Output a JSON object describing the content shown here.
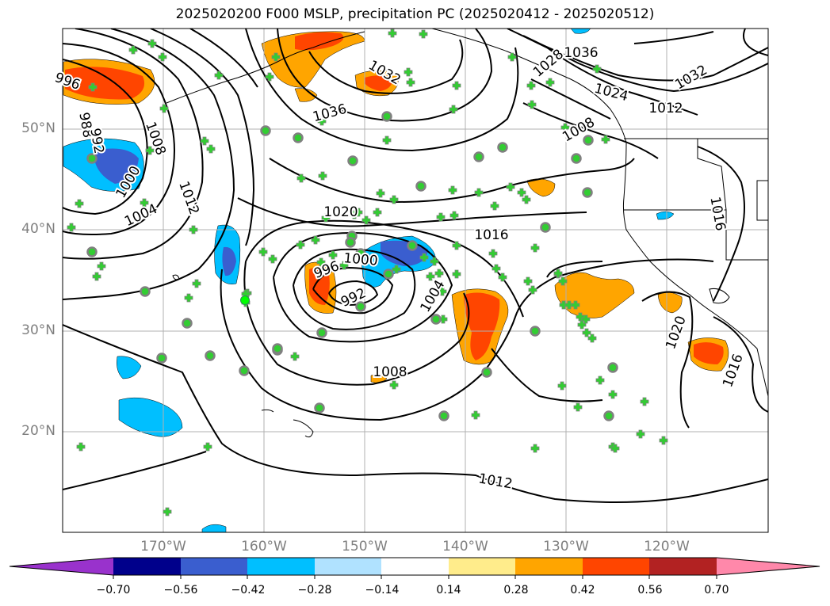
{
  "title": "2025020200 F000 MSLP, precipitation PC (2025020412 - 2025020512)",
  "axes": {
    "lat_labels": [
      "50°N",
      "40°N",
      "30°N",
      "20°N"
    ],
    "lon_labels": [
      "170°W",
      "160°W",
      "150°W",
      "140°W",
      "130°W",
      "120°W"
    ]
  },
  "contour_labels": [
    {
      "text": "996",
      "tx": 85,
      "ty": 103,
      "rot": 20
    },
    {
      "text": "988",
      "tx": 108,
      "ty": 158,
      "rot": 80
    },
    {
      "text": "992",
      "tx": 122,
      "ty": 178,
      "rot": 80
    },
    {
      "text": "1000",
      "tx": 162,
      "ty": 230,
      "rot": -60
    },
    {
      "text": "1004",
      "tx": 178,
      "ty": 272,
      "rot": -25
    },
    {
      "text": "1008",
      "tx": 196,
      "ty": 175,
      "rot": 70
    },
    {
      "text": "1012",
      "tx": 238,
      "ty": 250,
      "rot": 70
    },
    {
      "text": "1020",
      "tx": 430,
      "ty": 268,
      "rot": 0
    },
    {
      "text": "1036",
      "tx": 416,
      "ty": 143,
      "rot": -15
    },
    {
      "text": "1032",
      "tx": 485,
      "ty": 92,
      "rot": 30
    },
    {
      "text": "1016",
      "tx": 620,
      "ty": 297,
      "rot": 0
    },
    {
      "text": "1000",
      "tx": 455,
      "ty": 328,
      "rot": 5
    },
    {
      "text": "996",
      "tx": 412,
      "ty": 341,
      "rot": -20
    },
    {
      "text": "992",
      "tx": 446,
      "ty": 376,
      "rot": -25
    },
    {
      "text": "1004",
      "tx": 546,
      "ty": 374,
      "rot": -60
    },
    {
      "text": "1008",
      "tx": 492,
      "ty": 470,
      "rot": 0
    },
    {
      "text": "1012",
      "tx": 625,
      "ty": 608,
      "rot": 10
    },
    {
      "text": "1036",
      "tx": 733,
      "ty": 67,
      "rot": 0
    },
    {
      "text": "1028",
      "tx": 692,
      "ty": 80,
      "rot": -40
    },
    {
      "text": "1024",
      "tx": 771,
      "ty": 117,
      "rot": 15
    },
    {
      "text": "1012",
      "tx": 840,
      "ty": 137,
      "rot": 0
    },
    {
      "text": "1032",
      "tx": 872,
      "ty": 98,
      "rot": -30
    },
    {
      "text": "1008",
      "tx": 730,
      "ty": 164,
      "rot": -30
    },
    {
      "text": "1016",
      "tx": 905,
      "ty": 270,
      "rot": 80
    },
    {
      "text": "1020",
      "tx": 853,
      "ty": 420,
      "rot": -70
    },
    {
      "text": "1016",
      "tx": 925,
      "ty": 468,
      "rot": -70
    }
  ],
  "colorbar": {
    "ticks": [
      "−0.70",
      "−0.56",
      "−0.42",
      "−0.28",
      "−0.14",
      "0.14",
      "0.28",
      "0.42",
      "0.56",
      "0.70"
    ],
    "colors": [
      "#9932cc",
      "#00008b",
      "#3a5ecf",
      "#00bfff",
      "#b0e2ff",
      "#ffffff",
      "#ffec8b",
      "#ffa500",
      "#ff4500",
      "#b22222",
      "#ff88aa",
      "#ff88aa"
    ]
  },
  "colors": {
    "orange": "#ffa500",
    "red_orange": "#ff4500",
    "blue_light": "#00bfff",
    "blue_dark": "#3a5ecf",
    "station_fill": "#32cd32",
    "station_outline": "#808080",
    "grid": "#b0b0b0"
  }
}
